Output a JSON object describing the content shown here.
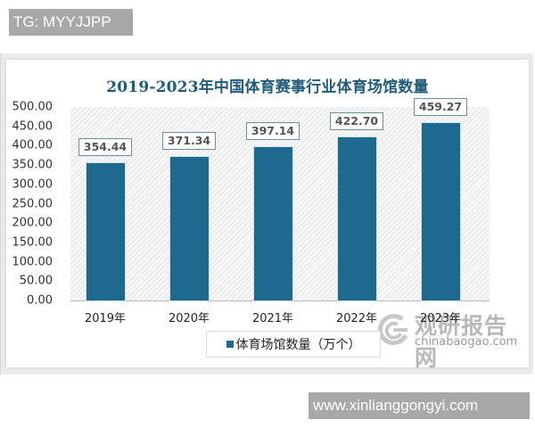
{
  "overlay": {
    "tag_label": "TG: MYYJJPP",
    "url_label": "www.xinlianggongyi.com"
  },
  "watermark": {
    "cn_text": "观研报告网",
    "en_text": "chinabaogao.com"
  },
  "colors": {
    "bar": "#1e6a8f",
    "title": "#1f5c7a",
    "label_border": "#6e8e9c"
  },
  "chart_data": {
    "type": "bar",
    "title": "2019-2023年中国体育赛事行业体育场馆数量",
    "categories": [
      "2019年",
      "2020年",
      "2021年",
      "2022年",
      "2023年"
    ],
    "series": [
      {
        "name": "体育场馆数量（万个）",
        "values": [
          354.44,
          371.34,
          397.14,
          422.7,
          459.27
        ],
        "labels": [
          "354.44",
          "371.34",
          "397.14",
          "422.70",
          "459.27"
        ]
      }
    ],
    "xlabel": "",
    "ylabel": "",
    "ylim": [
      0,
      500
    ],
    "yticks": [
      "0.00",
      "50.00",
      "100.00",
      "150.00",
      "200.00",
      "250.00",
      "300.00",
      "350.00",
      "400.00",
      "450.00",
      "500.00"
    ],
    "grid": false,
    "legend_position": "bottom",
    "data_labels": true
  }
}
